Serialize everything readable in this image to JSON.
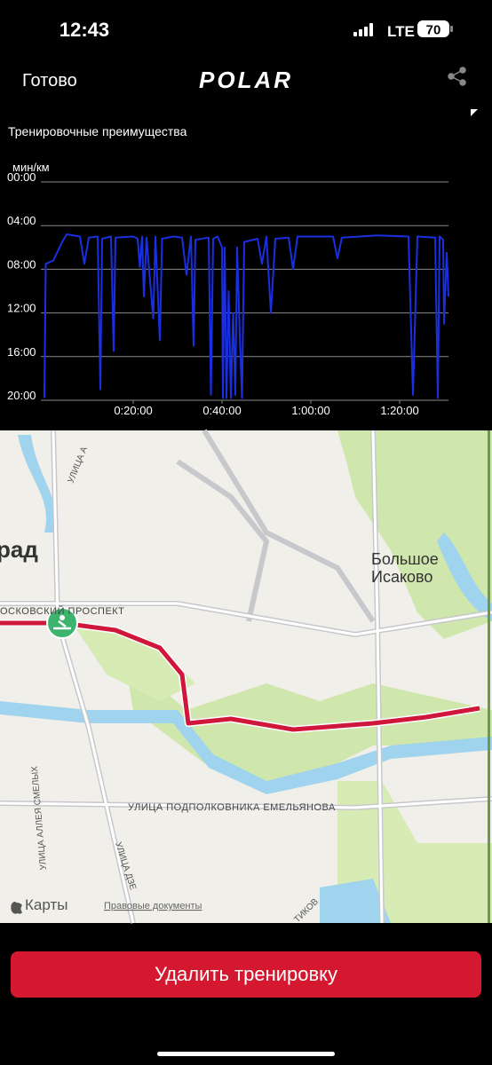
{
  "status_bar": {
    "time": "12:43",
    "network": "LTE",
    "battery": "70"
  },
  "nav": {
    "done": "Готово",
    "logo": "POLAR"
  },
  "section_title": "Тренировочные преимущества",
  "chart_data": {
    "type": "line",
    "ylabel": "мин/км",
    "y_inverted": true,
    "grid": true,
    "xlim": [
      0,
      91
    ],
    "xticks": [
      {
        "value": 20,
        "label": "0:20:00"
      },
      {
        "value": 40,
        "label": "0:40:00"
      },
      {
        "value": 60,
        "label": "1:00:00"
      },
      {
        "value": 80,
        "label": "1:20:00"
      }
    ],
    "ylim": [
      0,
      20
    ],
    "yticks": [
      {
        "value": 0,
        "label": "00:00"
      },
      {
        "value": 4,
        "label": "04:00"
      },
      {
        "value": 8,
        "label": "08:00"
      },
      {
        "value": 12,
        "label": "12:00"
      },
      {
        "value": 16,
        "label": "16:00"
      },
      {
        "value": 20,
        "label": "20:00"
      }
    ],
    "series": [
      {
        "color": "#1a2fe0",
        "x": [
          0,
          0.3,
          2,
          4,
          5,
          8,
          9,
          10,
          12,
          12.6,
          13,
          15,
          15.6,
          16,
          20,
          21,
          21.5,
          22,
          22.4,
          23,
          24.5,
          25,
          26,
          26.5,
          29,
          31,
          32,
          33,
          33.6,
          34,
          37,
          37.5,
          38,
          39,
          40,
          40.2,
          40.6,
          41,
          41.5,
          42,
          42.5,
          43,
          43.4,
          44,
          44.5,
          45,
          48,
          49,
          50,
          51,
          52,
          55,
          56,
          57,
          65,
          66,
          67,
          75,
          82,
          83,
          84,
          88,
          88.6,
          89,
          89.8,
          90,
          90.6,
          91
        ],
        "values": [
          19.8,
          7.5,
          7.2,
          5.5,
          4.8,
          5.0,
          7.5,
          5.1,
          5.0,
          19.0,
          5.2,
          5.0,
          15.5,
          5.1,
          5.0,
          5.2,
          7.8,
          5.0,
          10.5,
          5.1,
          12.5,
          5.0,
          14.5,
          5.2,
          5.0,
          5.1,
          8.5,
          5.0,
          15.0,
          5.3,
          5.1,
          19.5,
          5.2,
          5.0,
          6.0,
          19.8,
          6.0,
          19.8,
          10.0,
          19.8,
          12.0,
          19.5,
          6.0,
          14.0,
          19.8,
          5.5,
          5.2,
          7.5,
          5.0,
          12.0,
          5.2,
          5.1,
          8.0,
          5.0,
          5.0,
          7.0,
          5.1,
          4.9,
          5.0,
          19.5,
          5.0,
          5.1,
          19.8,
          5.0,
          5.3,
          13.0,
          6.5,
          10.5
        ]
      }
    ]
  },
  "map": {
    "labels": {
      "city": "рад",
      "village_1": "Большое",
      "village_2": "Исаково",
      "prospect": "ОСКОВСКИЙ ПРОСПЕКТ",
      "street_1": "УЛИЦА ПОДПОЛКОВНИКА ЕМЕЛЬЯНОВА",
      "street_2": "УЛИЦА АЛЛЕЯ СМЕЛЫХ",
      "street_3": "УЛИЦА ДЗЕ",
      "street_4": "УЛИЦА А",
      "street_5": "ТИКОВ",
      "maps": "Карты",
      "legal": "Правовые документы"
    }
  },
  "delete_button": "Удалить тренировку"
}
